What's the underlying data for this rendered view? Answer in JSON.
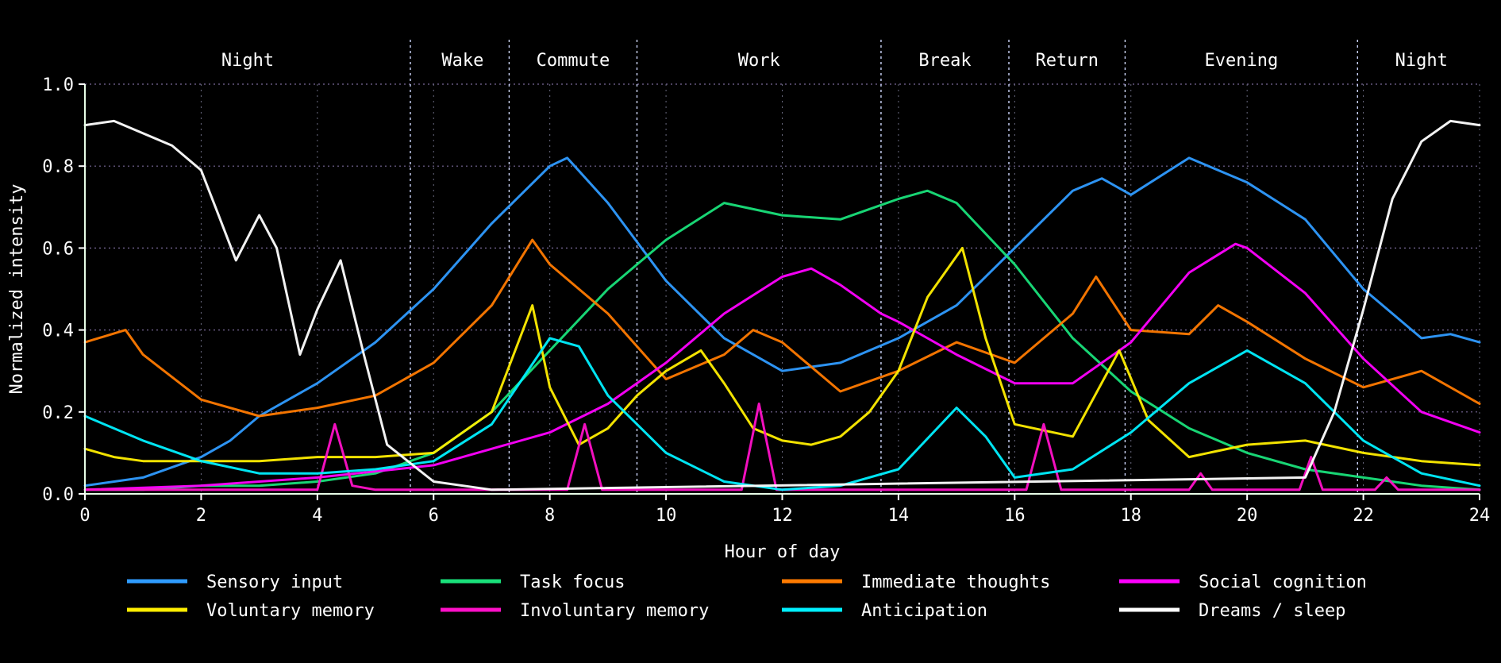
{
  "chart_data": {
    "type": "line",
    "title": "",
    "xlabel": "Hour of day",
    "ylabel": "Normalized intensity",
    "xlim": [
      0,
      24
    ],
    "ylim": [
      0,
      1
    ],
    "xticks": [
      0,
      2,
      4,
      6,
      8,
      10,
      12,
      14,
      16,
      18,
      20,
      22,
      24
    ],
    "yticks": [
      "0.0",
      "0.2",
      "0.4",
      "0.6",
      "0.8",
      "1.0"
    ],
    "grid": true,
    "legend_position": "bottom",
    "phase_boundaries": [
      5.6,
      7.3,
      9.5,
      13.7,
      15.9,
      17.9,
      21.9
    ],
    "phases": [
      {
        "label": "Night",
        "center": 2.8
      },
      {
        "label": "Wake",
        "center": 6.5
      },
      {
        "label": "Commute",
        "center": 8.4
      },
      {
        "label": "Work",
        "center": 11.6
      },
      {
        "label": "Break",
        "center": 14.8
      },
      {
        "label": "Return",
        "center": 16.9
      },
      {
        "label": "Evening",
        "center": 19.9
      },
      {
        "label": "Night",
        "center": 23.0
      }
    ],
    "series": [
      {
        "name": "Sensory input",
        "color": "#2f9bff",
        "x": [
          0,
          1,
          2,
          2.5,
          3,
          4,
          5,
          6,
          7,
          8,
          8.3,
          9,
          10,
          11,
          12,
          13,
          14,
          15,
          16,
          17,
          17.5,
          18,
          19,
          20,
          21,
          22,
          23,
          23.5,
          24
        ],
        "values": [
          0.02,
          0.04,
          0.09,
          0.13,
          0.19,
          0.27,
          0.37,
          0.5,
          0.66,
          0.8,
          0.82,
          0.71,
          0.52,
          0.38,
          0.3,
          0.32,
          0.38,
          0.46,
          0.6,
          0.74,
          0.77,
          0.73,
          0.82,
          0.76,
          0.67,
          0.5,
          0.38,
          0.39,
          0.37
        ]
      },
      {
        "name": "Task focus",
        "color": "#19e07a",
        "x": [
          0,
          1,
          2,
          3,
          4,
          5,
          6,
          7,
          8,
          9,
          10,
          11,
          12,
          13,
          14,
          14.5,
          15,
          16,
          17,
          18,
          19,
          20,
          21,
          22,
          23,
          24
        ],
        "values": [
          0.01,
          0.01,
          0.02,
          0.02,
          0.03,
          0.05,
          0.1,
          0.2,
          0.35,
          0.5,
          0.62,
          0.71,
          0.68,
          0.67,
          0.72,
          0.74,
          0.71,
          0.56,
          0.38,
          0.25,
          0.16,
          0.1,
          0.06,
          0.04,
          0.02,
          0.01
        ]
      },
      {
        "name": "Immediate thoughts",
        "color": "#ff7a00",
        "x": [
          0,
          0.7,
          1,
          2,
          3,
          4,
          5,
          6,
          7,
          7.7,
          8,
          9,
          10,
          11,
          11.5,
          12,
          13,
          14,
          15,
          16,
          17,
          17.4,
          18,
          19,
          19.5,
          20,
          21,
          22,
          23,
          24
        ],
        "values": [
          0.37,
          0.4,
          0.34,
          0.23,
          0.19,
          0.21,
          0.24,
          0.32,
          0.46,
          0.62,
          0.56,
          0.44,
          0.28,
          0.34,
          0.4,
          0.37,
          0.25,
          0.3,
          0.37,
          0.32,
          0.44,
          0.53,
          0.4,
          0.39,
          0.46,
          0.42,
          0.33,
          0.26,
          0.3,
          0.22
        ]
      },
      {
        "name": "Social cognition",
        "color": "#ff00ff",
        "x": [
          0,
          2,
          4,
          6,
          8,
          9,
          10,
          11,
          12,
          12.5,
          13,
          13.7,
          14,
          15,
          16,
          17,
          18,
          19,
          19.8,
          20,
          21,
          22,
          23,
          24
        ],
        "values": [
          0.01,
          0.02,
          0.04,
          0.07,
          0.15,
          0.22,
          0.32,
          0.44,
          0.53,
          0.55,
          0.51,
          0.44,
          0.42,
          0.34,
          0.27,
          0.27,
          0.37,
          0.54,
          0.61,
          0.6,
          0.49,
          0.33,
          0.2,
          0.15
        ]
      },
      {
        "name": "Voluntary memory",
        "color": "#ffee00",
        "x": [
          0,
          0.5,
          1,
          2,
          3,
          4,
          5,
          6,
          7,
          7.7,
          8,
          8.5,
          9,
          9.5,
          10,
          10.6,
          11,
          11.5,
          12,
          12.5,
          13,
          13.5,
          14,
          14.5,
          15.1,
          15.5,
          16,
          17,
          17.8,
          18.3,
          19,
          20,
          21,
          22,
          23,
          24
        ],
        "values": [
          0.11,
          0.09,
          0.08,
          0.08,
          0.08,
          0.09,
          0.09,
          0.1,
          0.2,
          0.46,
          0.26,
          0.12,
          0.16,
          0.24,
          0.3,
          0.35,
          0.27,
          0.16,
          0.13,
          0.12,
          0.14,
          0.2,
          0.3,
          0.48,
          0.6,
          0.38,
          0.17,
          0.14,
          0.35,
          0.18,
          0.09,
          0.12,
          0.13,
          0.1,
          0.08,
          0.07
        ]
      },
      {
        "name": "Involuntary memory",
        "color": "#ff10c8",
        "x": [
          0,
          4,
          4.3,
          4.6,
          5,
          8.3,
          8.6,
          8.9,
          11.3,
          11.6,
          11.9,
          16.2,
          16.5,
          16.8,
          19,
          19.2,
          19.4,
          20.9,
          21.1,
          21.3,
          22.2,
          22.4,
          22.6,
          24
        ],
        "values": [
          0.01,
          0.01,
          0.17,
          0.02,
          0.01,
          0.01,
          0.17,
          0.01,
          0.01,
          0.22,
          0.01,
          0.01,
          0.17,
          0.01,
          0.01,
          0.05,
          0.01,
          0.01,
          0.09,
          0.01,
          0.01,
          0.04,
          0.01,
          0.01
        ]
      },
      {
        "name": "Anticipation",
        "color": "#00f0ff",
        "x": [
          0,
          1,
          2,
          3,
          4,
          5,
          6,
          7,
          8,
          8.5,
          9,
          10,
          11,
          12,
          13,
          14,
          15,
          15.5,
          16,
          17,
          18,
          19,
          20,
          21,
          22,
          23,
          24
        ],
        "values": [
          0.19,
          0.13,
          0.08,
          0.05,
          0.05,
          0.06,
          0.08,
          0.17,
          0.38,
          0.36,
          0.24,
          0.1,
          0.03,
          0.01,
          0.02,
          0.06,
          0.21,
          0.14,
          0.04,
          0.06,
          0.15,
          0.27,
          0.35,
          0.27,
          0.13,
          0.05,
          0.02
        ]
      },
      {
        "name": "Dreams / sleep",
        "color": "#ffffff",
        "x": [
          0,
          0.5,
          1,
          1.5,
          2,
          2.3,
          2.6,
          3,
          3.3,
          3.7,
          4,
          4.4,
          4.8,
          5.2,
          6,
          7,
          21,
          21.5,
          22,
          22.5,
          23,
          23.5,
          24
        ],
        "values": [
          0.9,
          0.91,
          0.88,
          0.85,
          0.79,
          0.68,
          0.57,
          0.68,
          0.6,
          0.34,
          0.45,
          0.57,
          0.34,
          0.12,
          0.03,
          0.01,
          0.04,
          0.2,
          0.45,
          0.72,
          0.86,
          0.91,
          0.9
        ]
      }
    ]
  }
}
